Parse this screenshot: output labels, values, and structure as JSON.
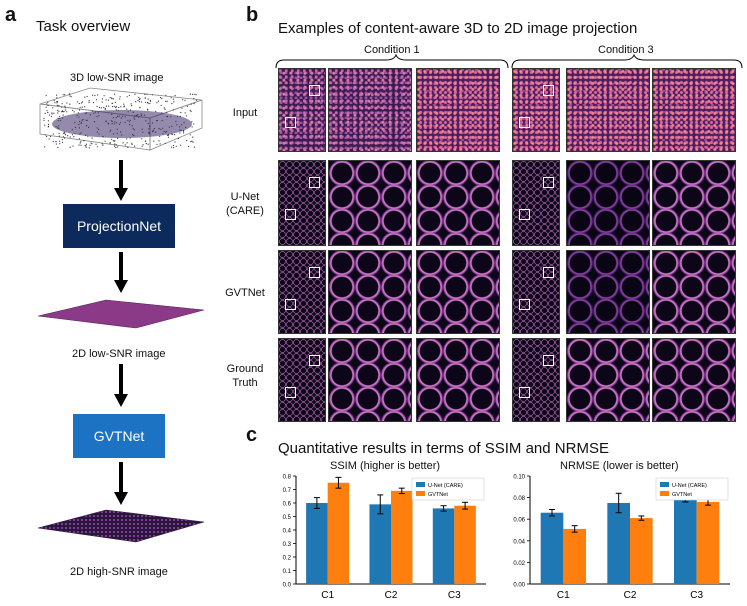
{
  "panel_a": {
    "letter": "a",
    "title": "Task overview",
    "steps": {
      "input_label": "3D low-SNR image",
      "projection_box": "ProjectionNet",
      "mid_label": "2D low-SNR image",
      "gvt_box": "GVTNet",
      "output_label": "2D high-SNR image"
    },
    "colors": {
      "projectionnet": "#0d2a5c",
      "gvtnet": "#1c73c3"
    }
  },
  "panel_b": {
    "letter": "b",
    "title": "Examples of content-aware 3D to 2D image projection",
    "conditions": [
      "Condition 1",
      "Condition 3"
    ],
    "rows": [
      "Input",
      "U-Net\n(CARE)",
      "GVTNet",
      "Ground\nTruth"
    ]
  },
  "panel_c": {
    "letter": "c",
    "title": "Quantitative results in terms of SSIM and NRMSE",
    "legend": [
      "U-Net (CARE)",
      "GVTNet"
    ],
    "colors": {
      "unet": "#1f77b4",
      "gvtnet": "#ff7f0e"
    }
  },
  "chart_data": [
    {
      "type": "bar",
      "title": "SSIM (higher is better)",
      "categories": [
        "C1",
        "C2",
        "C3"
      ],
      "series": [
        {
          "name": "U-Net (CARE)",
          "values": [
            0.6,
            0.59,
            0.56
          ],
          "errors": [
            0.04,
            0.07,
            0.02
          ]
        },
        {
          "name": "GVTNet",
          "values": [
            0.75,
            0.69,
            0.58
          ],
          "errors": [
            0.04,
            0.02,
            0.025
          ]
        }
      ],
      "ylim": [
        0,
        0.8
      ],
      "yticks": [
        "0.0",
        "0.1",
        "0.2",
        "0.3",
        "0.4",
        "0.5",
        "0.6",
        "0.7",
        "0.8"
      ],
      "legend_position": "top-right"
    },
    {
      "type": "bar",
      "title": "NRMSE (lower is better)",
      "categories": [
        "C1",
        "C2",
        "C3"
      ],
      "series": [
        {
          "name": "U-Net (CARE)",
          "values": [
            0.066,
            0.075,
            0.08
          ],
          "errors": [
            0.003,
            0.009,
            0.004
          ]
        },
        {
          "name": "GVTNet",
          "values": [
            0.051,
            0.061,
            0.076
          ],
          "errors": [
            0.003,
            0.002,
            0.003
          ]
        }
      ],
      "ylim": [
        0,
        0.1
      ],
      "yticks": [
        "0.00",
        "0.02",
        "0.04",
        "0.06",
        "0.08",
        "0.10"
      ],
      "legend_position": "top-right"
    }
  ]
}
